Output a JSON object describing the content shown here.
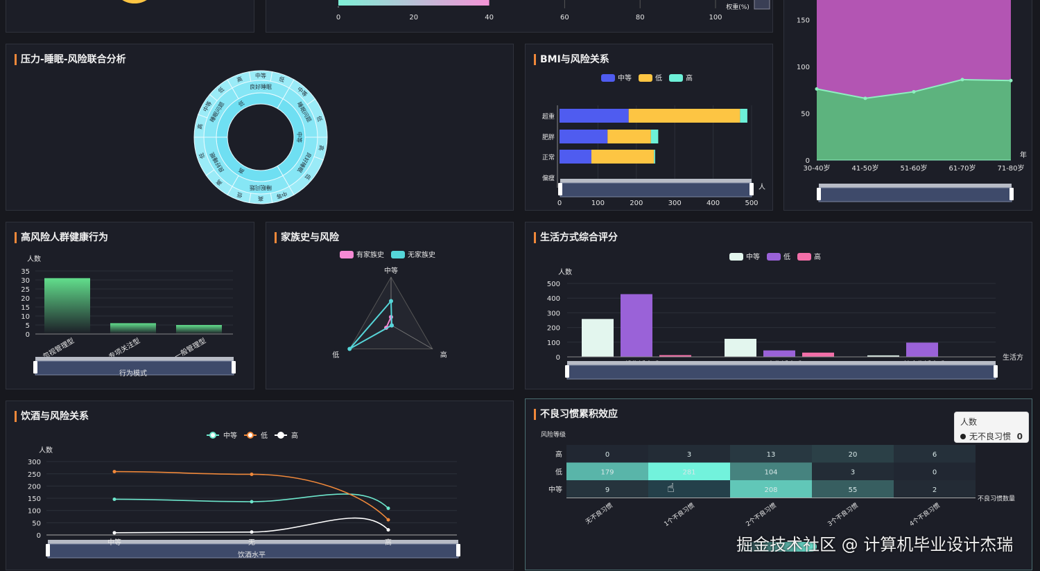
{
  "panels": {
    "stress_sleep": {
      "title": "压力-睡眠-风险联合分析"
    },
    "bmi": {
      "title": "BMI与风险关系"
    },
    "behavior": {
      "title": "高风险人群健康行为"
    },
    "family": {
      "title": "家族史与风险"
    },
    "lifestyle": {
      "title": "生活方式综合评分"
    },
    "alcohol": {
      "title": "饮酒与风险关系"
    },
    "habits": {
      "title": "不良习惯累积效应"
    }
  },
  "colors": {
    "accent": "#f0883a",
    "panel_bg": "#1c1e27",
    "page_bg": "#17181e"
  },
  "chart_data": [
    {
      "id": "weight",
      "type": "bar",
      "orientation": "horizontal",
      "xlabel": "权重(%)",
      "xticks": [
        "0",
        "20",
        "40",
        "60",
        "80",
        "100"
      ],
      "xlim": [
        0,
        100
      ],
      "values": [
        40
      ],
      "colors": [
        "#7ef0d6",
        "#f493d6"
      ]
    },
    {
      "id": "stress_sleep",
      "type": "sunburst",
      "tree": [
        {
          "name": "中等",
          "value": 120,
          "children": [
            {
              "name": "睡眠问题",
              "value": 60,
              "children": [
                {
                  "name": "中等",
                  "value": 25
                },
                {
                  "name": "低",
                  "value": 35
                }
              ]
            },
            {
              "name": "良好睡眠",
              "value": 60,
              "children": [
                {
                  "name": "高",
                  "value": 20
                },
                {
                  "name": "低",
                  "value": 40
                }
              ]
            }
          ]
        },
        {
          "name": "高",
          "value": 120,
          "children": [
            {
              "name": "睡眠问题",
              "value": 60,
              "children": [
                {
                  "name": "中等",
                  "value": 20
                },
                {
                  "name": "高",
                  "value": 20
                },
                {
                  "name": "低",
                  "value": 20
                }
              ]
            },
            {
              "name": "良好睡眠",
              "value": 60,
              "children": [
                {
                  "name": "高",
                  "value": 25
                },
                {
                  "name": "低",
                  "value": 35
                }
              ]
            }
          ]
        },
        {
          "name": "低",
          "value": 120,
          "children": [
            {
              "name": "睡眠问题",
              "value": 60,
              "children": [
                {
                  "name": "高",
                  "value": 20
                },
                {
                  "name": "中等",
                  "value": 20
                },
                {
                  "name": "低",
                  "value": 20
                }
              ]
            },
            {
              "name": "良好睡眠",
              "value": 60,
              "children": [
                {
                  "name": "高",
                  "value": 20
                },
                {
                  "name": "中等",
                  "value": 20
                },
                {
                  "name": "低",
                  "value": 20
                }
              ]
            }
          ]
        }
      ]
    },
    {
      "id": "bmi",
      "type": "bar",
      "stacked": true,
      "orientation": "horizontal",
      "categories": [
        "超重",
        "肥胖",
        "正常",
        "偏瘦"
      ],
      "xlabel": "人",
      "xlim": [
        0,
        500
      ],
      "xticks": [
        "0",
        "100",
        "200",
        "300",
        "400",
        "500"
      ],
      "series": [
        {
          "name": "中等",
          "color": "#4f5cf0",
          "values": [
            180,
            125,
            83,
            0
          ]
        },
        {
          "name": "低",
          "color": "#fdc543",
          "values": [
            290,
            113,
            163,
            0
          ]
        },
        {
          "name": "高",
          "color": "#6df0d8",
          "values": [
            19,
            19,
            3,
            0
          ]
        }
      ]
    },
    {
      "id": "age",
      "type": "area",
      "stacked": true,
      "xlabel": "年",
      "categories": [
        "30-40岁",
        "41-50岁",
        "51-60岁",
        "61-70岁",
        "71-80岁"
      ],
      "yticks": [
        "0",
        "50",
        "100",
        "150"
      ],
      "ylim": [
        0,
        170
      ],
      "series": [
        {
          "color": "#5db37e",
          "values": [
            76,
            66,
            73,
            86,
            85
          ]
        },
        {
          "color": "#b355b3",
          "values": [
            100,
            110,
            103,
            90,
            91
          ]
        }
      ]
    },
    {
      "id": "behavior",
      "type": "bar",
      "ylabel": "人数",
      "xlabel": "行为模式",
      "categories": [
        "忽视管理型",
        "专项关注型",
        "一般管理型"
      ],
      "values": [
        31,
        6,
        5
      ],
      "ylim": [
        0,
        35
      ],
      "yticks": [
        "0",
        "5",
        "10",
        "15",
        "20",
        "25",
        "30",
        "35"
      ],
      "color": "#5fd68a"
    },
    {
      "id": "family",
      "type": "radar",
      "indicators": [
        "中等",
        "低",
        "高"
      ],
      "max": 300,
      "series": [
        {
          "name": "有家族史",
          "color": "#f58ad4",
          "values": [
            50,
            35,
            5
          ]
        },
        {
          "name": "无家族史",
          "color": "#55d6d9",
          "values": [
            150,
            300,
            5
          ]
        }
      ]
    },
    {
      "id": "lifestyle",
      "type": "bar",
      "ylabel": "人数",
      "xlabel": "生活方",
      "categories": [
        "一般生活方式",
        "不良生活方式",
        "健康生活方式"
      ],
      "ylim": [
        0,
        500
      ],
      "yticks": [
        "0",
        "100",
        "200",
        "300",
        "400",
        "500"
      ],
      "series": [
        {
          "name": "中等",
          "color": "#e3f6ee",
          "values": [
            258,
            123,
            10
          ]
        },
        {
          "name": "低",
          "color": "#9a62d8",
          "values": [
            427,
            44,
            97
          ]
        },
        {
          "name": "高",
          "color": "#f26fa8",
          "values": [
            12,
            29,
            0
          ]
        }
      ]
    },
    {
      "id": "alcohol",
      "type": "line",
      "ylabel": "人数",
      "xlabel": "饮酒水平",
      "categories": [
        "中等",
        "无",
        "高"
      ],
      "ylim": [
        0,
        300
      ],
      "yticks": [
        "0",
        "50",
        "100",
        "150",
        "200",
        "250",
        "300"
      ],
      "series": [
        {
          "name": "中等",
          "color": "#6de6cc",
          "values": [
            146,
            136,
            109
          ]
        },
        {
          "name": "低",
          "color": "#f0883a",
          "values": [
            259,
            248,
            62
          ]
        },
        {
          "name": "高",
          "color": "#ffffff",
          "values": [
            9,
            12,
            21
          ]
        }
      ]
    },
    {
      "id": "habits",
      "type": "heatmap",
      "ylabel": "风险等级",
      "xlabel": "不良习惯数量",
      "xcategories": [
        "无不良习惯",
        "1个不良习惯",
        "2个不良习惯",
        "3个不良习惯",
        "4个不良习惯"
      ],
      "ycategories": [
        "高",
        "低",
        "中等"
      ],
      "values": [
        [
          0,
          3,
          13,
          20,
          6
        ],
        [
          179,
          281,
          104,
          3,
          0
        ],
        [
          9,
          null,
          208,
          55,
          2
        ]
      ],
      "range": [
        0,
        281
      ]
    }
  ],
  "tooltip": {
    "title": "人数",
    "label": "无不良习惯",
    "value": "0"
  },
  "watermark": "掘金技术社区 @ 计算机毕业设计杰瑞"
}
